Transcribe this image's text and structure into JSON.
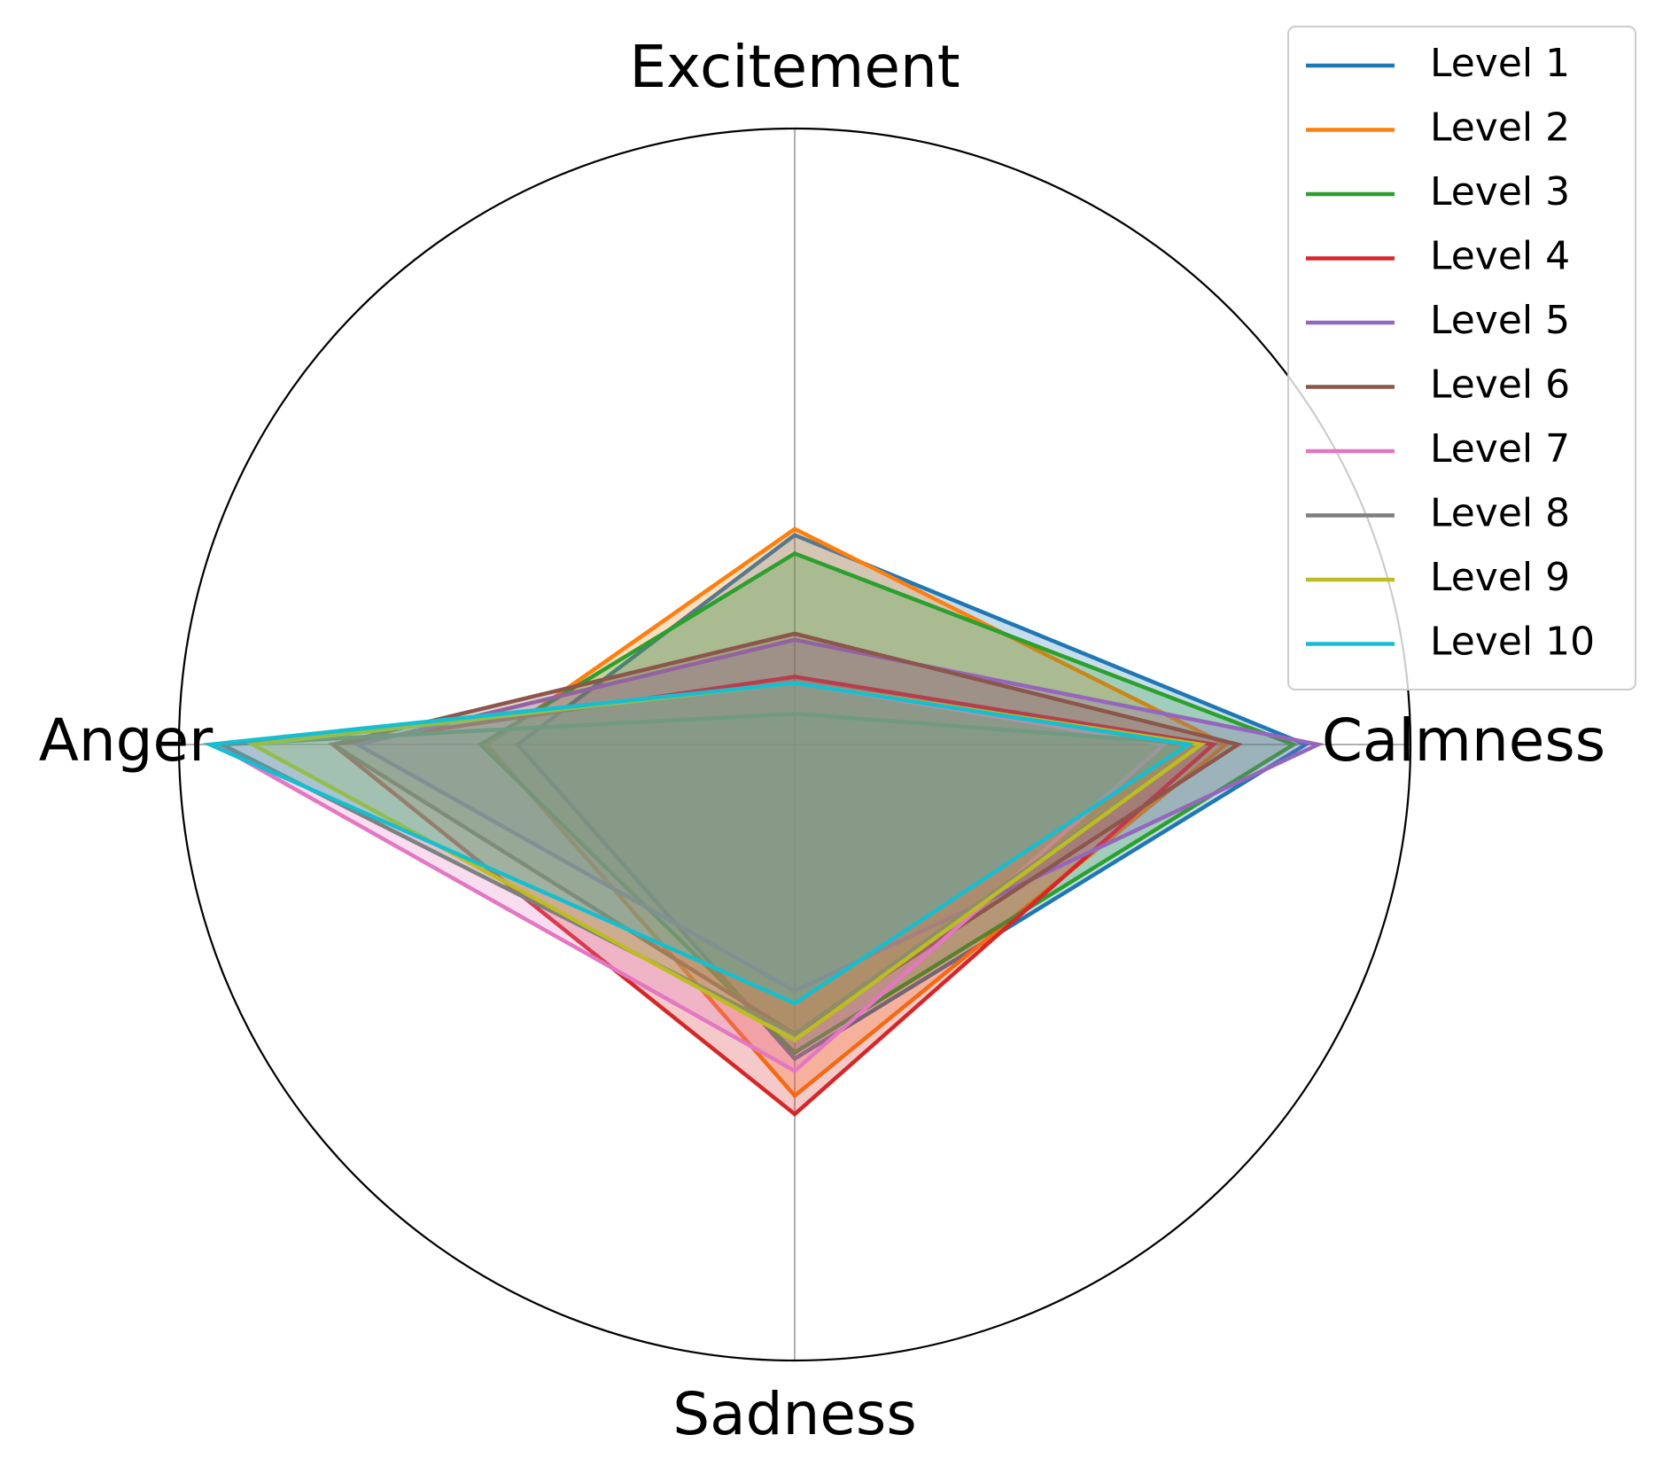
{
  "chart_data": {
    "type": "radar",
    "categories": [
      "Excitement",
      "Calmness",
      "Sadness",
      "Anger"
    ],
    "direction": "clockwise",
    "ylim": [
      0,
      1
    ],
    "grid": true,
    "legend": "upper right",
    "series": [
      {
        "name": "Level 1",
        "color": "#1f77b4",
        "values": [
          0.34,
          0.83,
          0.51,
          0.45
        ]
      },
      {
        "name": "Level 2",
        "color": "#ff7f0e",
        "values": [
          0.35,
          0.7,
          0.57,
          0.5
        ]
      },
      {
        "name": "Level 3",
        "color": "#2ca02c",
        "values": [
          0.31,
          0.81,
          0.5,
          0.51
        ]
      },
      {
        "name": "Level 4",
        "color": "#d62728",
        "values": [
          0.11,
          0.68,
          0.6,
          0.75
        ]
      },
      {
        "name": "Level 5",
        "color": "#9467bd",
        "values": [
          0.17,
          0.85,
          0.4,
          0.71
        ]
      },
      {
        "name": "Level 6",
        "color": "#8c564b",
        "values": [
          0.18,
          0.72,
          0.47,
          0.75
        ]
      },
      {
        "name": "Level 7",
        "color": "#e377c2",
        "values": [
          0.1,
          0.6,
          0.53,
          0.94
        ]
      },
      {
        "name": "Level 8",
        "color": "#7f7f7f",
        "values": [
          0.05,
          0.66,
          0.47,
          0.93
        ]
      },
      {
        "name": "Level 9",
        "color": "#bcbd22",
        "values": [
          0.1,
          0.66,
          0.48,
          0.88
        ]
      },
      {
        "name": "Level 10",
        "color": "#17becf",
        "values": [
          0.1,
          0.64,
          0.42,
          0.95
        ]
      }
    ]
  }
}
